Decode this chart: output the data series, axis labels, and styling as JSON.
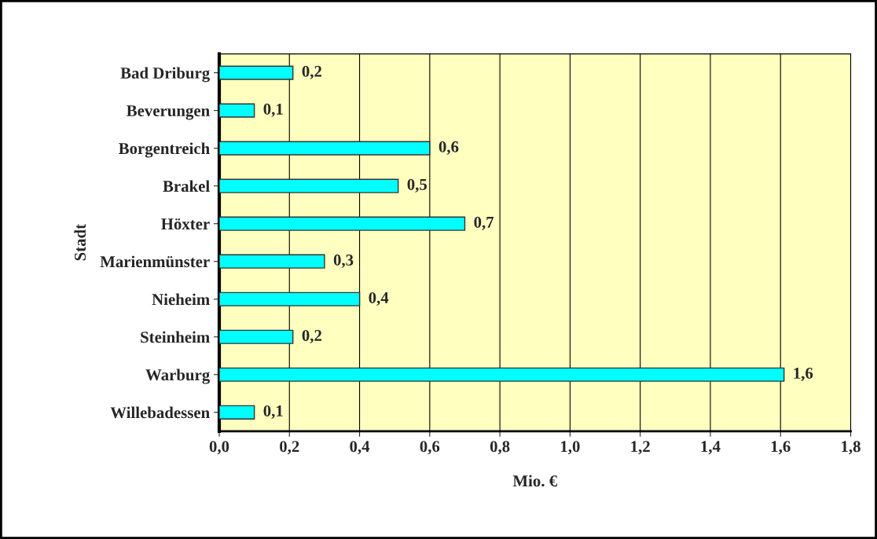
{
  "chart_data": {
    "type": "bar",
    "orientation": "horizontal",
    "xlabel": "Mio. €",
    "ylabel": "Stadt",
    "categories": [
      "Bad Driburg",
      "Beverungen",
      "Borgentreich",
      "Brakel",
      "Höxter",
      "Marienmünster",
      "Nieheim",
      "Steinheim",
      "Warburg",
      "Willebadessen"
    ],
    "values": [
      0.21,
      0.1,
      0.6,
      0.51,
      0.7,
      0.3,
      0.4,
      0.21,
      1.61,
      0.1
    ],
    "value_labels": [
      "0,2",
      "0,1",
      "0,6",
      "0,5",
      "0,7",
      "0,3",
      "0,4",
      "0,2",
      "1,6",
      "0,1"
    ],
    "color": "#00ffff",
    "xlim": [
      0,
      1.8
    ],
    "xticks": [
      {
        "value": 0,
        "label": "0,0"
      },
      {
        "value": 0.2,
        "label": "0,2"
      },
      {
        "value": 0.4,
        "label": "0,4"
      },
      {
        "value": 0.6,
        "label": "0,6"
      },
      {
        "value": 0.8,
        "label": "0,8"
      },
      {
        "value": 1.0,
        "label": "1,0"
      },
      {
        "value": 1.2,
        "label": "1,2"
      },
      {
        "value": 1.4,
        "label": "1,4"
      },
      {
        "value": 1.6,
        "label": "1,6"
      },
      {
        "value": 1.8,
        "label": "1,8"
      }
    ],
    "grid": "x",
    "legend": false
  }
}
